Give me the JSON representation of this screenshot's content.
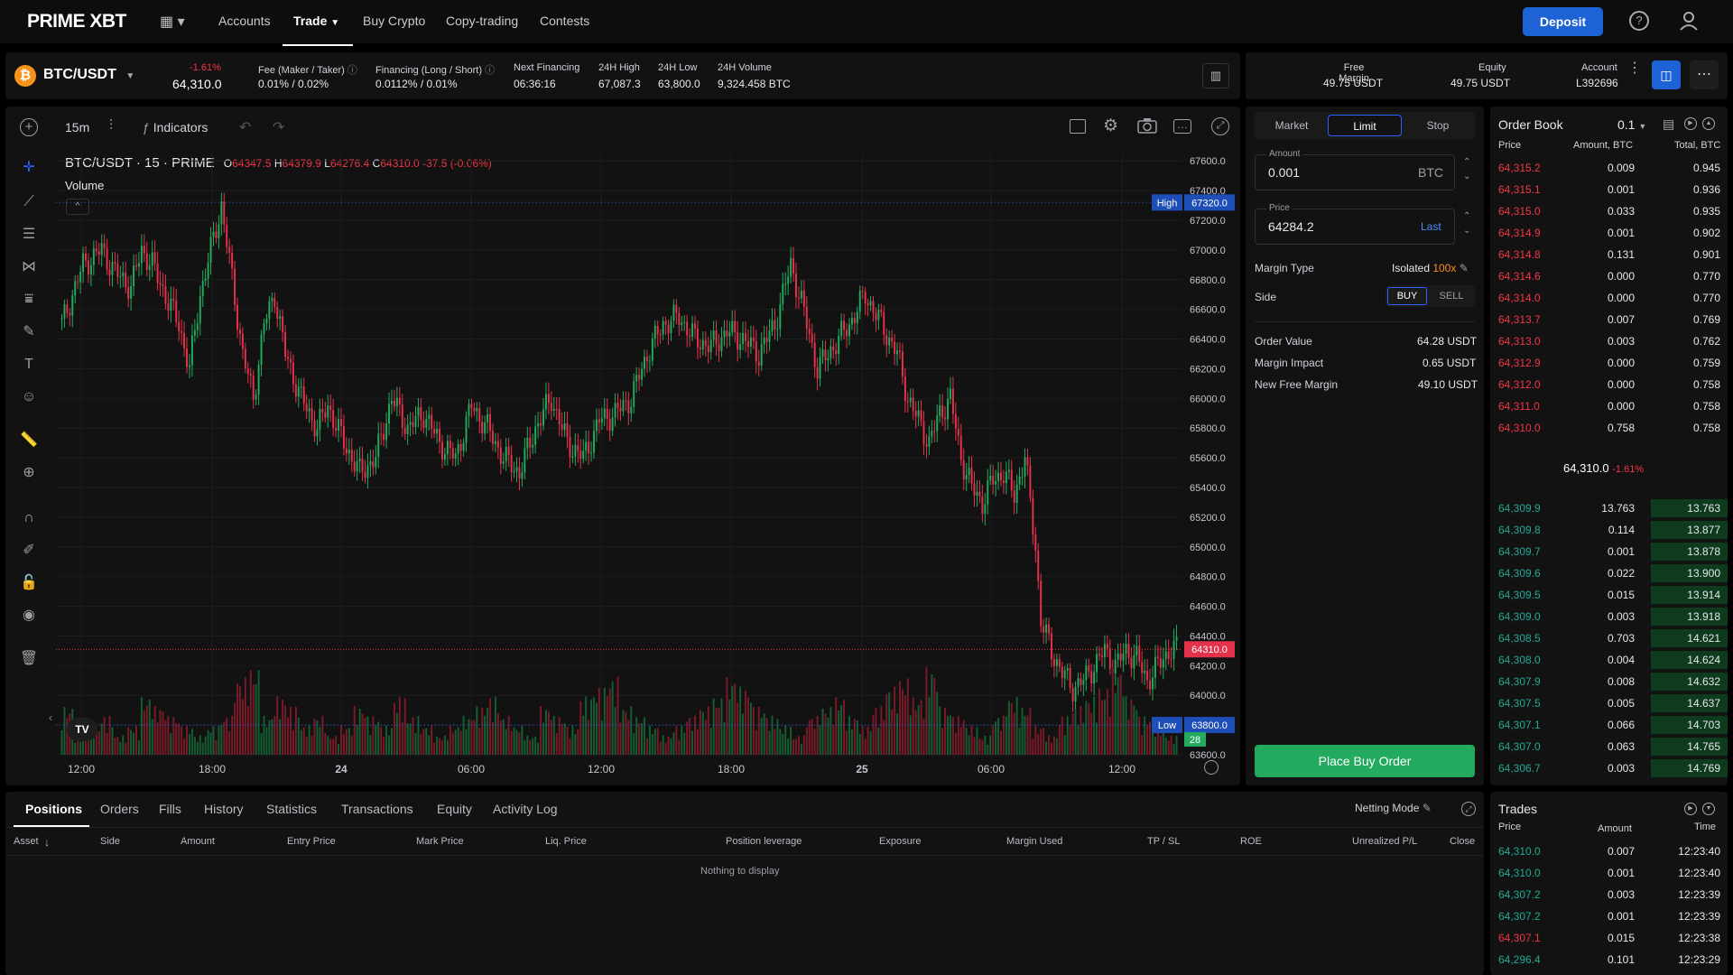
{
  "nav": {
    "logo": "PRIME XBT",
    "accounts": "Accounts",
    "trade": "Trade",
    "buy_crypto": "Buy Crypto",
    "copy_trading": "Copy-trading",
    "contests": "Contests",
    "deposit": "Deposit"
  },
  "ticker": {
    "pair": "BTC/USDT",
    "change": "-1.61%",
    "price": "64,310.0",
    "fee_label": "Fee (Maker / Taker)",
    "fee_value": "0.01% / 0.02%",
    "financing_label": "Financing (Long / Short)",
    "financing_value": "0.0112% / 0.01%",
    "next_financing_label": "Next Financing",
    "next_financing_value": "06:36:16",
    "high_label": "24H High",
    "high_value": "67,087.3",
    "low_label": "24H Low",
    "low_value": "63,800.0",
    "volume_label": "24H Volume",
    "volume_value": "9,324.458 BTC"
  },
  "account": {
    "free_margin_label": "Free Margin",
    "free_margin_value": "49.75 USDT",
    "equity_label": "Equity",
    "equity_value": "49.75 USDT",
    "account_label": "Account",
    "account_value": "L392696"
  },
  "chart_toolbar": {
    "interval": "15m",
    "indicators": "Indicators"
  },
  "chart_data": {
    "type": "candlestick",
    "title": "BTC/USDT · 15 · PRIME",
    "ohlc": {
      "o_label": "O",
      "o": "64347.5",
      "h_label": "H",
      "h": "64379.9",
      "l_label": "L",
      "l": "64276.4",
      "c_label": "C",
      "c": "64310.0",
      "change": "-37.5 (-0.06%)"
    },
    "volume_label": "Volume",
    "y_ticks": [
      "67600.0",
      "67400.0",
      "67200.0",
      "67000.0",
      "66800.0",
      "66600.0",
      "66400.0",
      "66200.0",
      "66000.0",
      "65800.0",
      "65600.0",
      "65400.0",
      "65200.0",
      "65000.0",
      "64800.0",
      "64600.0",
      "64400.0",
      "64200.0",
      "64000.0",
      "63800.0",
      "63600.0"
    ],
    "ylim": [
      63600,
      67650
    ],
    "x_ticks": [
      "12:00",
      "18:00",
      "24",
      "06:00",
      "12:00",
      "18:00",
      "25",
      "06:00",
      "12:00"
    ],
    "high_label": "High",
    "high_value": "67320.0",
    "high": 67320,
    "low_label": "Low",
    "low_value": "63800.0",
    "low": 63800,
    "last_value": "64310.0",
    "last": 64310,
    "timer": "28",
    "path": [
      [
        0,
        66500
      ],
      [
        8,
        66900
      ],
      [
        15,
        67000
      ],
      [
        20,
        66850
      ],
      [
        26,
        66750
      ],
      [
        30,
        67000
      ],
      [
        34,
        66900
      ],
      [
        40,
        66650
      ],
      [
        44,
        66500
      ],
      [
        48,
        66200
      ],
      [
        52,
        66700
      ],
      [
        56,
        67000
      ],
      [
        60,
        67300
      ],
      [
        64,
        66800
      ],
      [
        68,
        66300
      ],
      [
        72,
        66000
      ],
      [
        76,
        66500
      ],
      [
        80,
        66700
      ],
      [
        84,
        66300
      ],
      [
        90,
        66000
      ],
      [
        96,
        65800
      ],
      [
        100,
        65950
      ],
      [
        106,
        65700
      ],
      [
        112,
        65500
      ],
      [
        118,
        65600
      ],
      [
        124,
        66000
      ],
      [
        130,
        65800
      ],
      [
        136,
        65900
      ],
      [
        142,
        65700
      ],
      [
        148,
        65600
      ],
      [
        154,
        65950
      ],
      [
        160,
        65800
      ],
      [
        166,
        65600
      ],
      [
        172,
        65500
      ],
      [
        178,
        65800
      ],
      [
        184,
        66000
      ],
      [
        190,
        65700
      ],
      [
        196,
        65600
      ],
      [
        202,
        65850
      ],
      [
        208,
        65900
      ],
      [
        214,
        66000
      ],
      [
        220,
        66300
      ],
      [
        226,
        66500
      ],
      [
        232,
        66550
      ],
      [
        238,
        66400
      ],
      [
        244,
        66350
      ],
      [
        250,
        66450
      ],
      [
        256,
        66400
      ],
      [
        262,
        66300
      ],
      [
        268,
        66500
      ],
      [
        274,
        66900
      ],
      [
        278,
        66650
      ],
      [
        284,
        66200
      ],
      [
        290,
        66350
      ],
      [
        296,
        66500
      ],
      [
        302,
        66700
      ],
      [
        308,
        66500
      ],
      [
        314,
        66300
      ],
      [
        318,
        66000
      ],
      [
        322,
        65850
      ],
      [
        326,
        65700
      ],
      [
        330,
        65900
      ],
      [
        334,
        66000
      ],
      [
        338,
        65600
      ],
      [
        342,
        65400
      ],
      [
        346,
        65300
      ],
      [
        350,
        65450
      ],
      [
        354,
        65500
      ],
      [
        358,
        65350
      ],
      [
        362,
        65600
      ],
      [
        366,
        65000
      ],
      [
        368,
        64500
      ],
      [
        372,
        64300
      ],
      [
        376,
        64150
      ],
      [
        380,
        64050
      ],
      [
        384,
        64100
      ],
      [
        388,
        64200
      ],
      [
        392,
        64300
      ],
      [
        396,
        64200
      ],
      [
        400,
        64300
      ],
      [
        404,
        64250
      ],
      [
        408,
        64100
      ],
      [
        412,
        64200
      ],
      [
        416,
        64300
      ],
      [
        419,
        64310
      ]
    ],
    "volume": [
      5,
      2,
      3,
      4,
      2,
      3,
      6,
      5,
      4,
      3,
      2,
      3,
      4,
      8,
      9,
      4,
      6,
      5,
      3,
      4,
      2,
      3,
      5,
      4,
      3,
      6,
      4,
      3,
      2,
      3,
      4,
      5,
      6,
      4,
      3,
      2,
      5,
      4,
      3,
      6,
      7,
      8,
      5,
      4,
      3,
      2,
      3,
      4,
      5,
      6,
      8,
      7,
      5,
      4,
      3,
      2,
      4,
      5,
      6,
      4,
      3,
      5,
      7,
      8,
      6,
      9,
      5,
      4,
      3,
      2,
      4,
      6,
      5,
      3,
      2,
      4,
      5,
      6,
      7,
      9,
      6,
      4,
      3,
      2,
      3,
      4
    ]
  },
  "order": {
    "market": "Market",
    "limit": "Limit",
    "stop": "Stop",
    "amount_label": "Amount",
    "amount_value": "0.001",
    "amount_unit": "BTC",
    "price_label": "Price",
    "price_value": "64284.2",
    "price_last": "Last",
    "margin_type_label": "Margin Type",
    "margin_type_value": "Isolated",
    "leverage": "100x",
    "side_label": "Side",
    "buy": "BUY",
    "sell": "SELL",
    "order_value_label": "Order Value",
    "order_value": "64.28 USDT",
    "margin_impact_label": "Margin Impact",
    "margin_impact": "0.65 USDT",
    "new_free_margin_label": "New Free Margin",
    "new_free_margin": "49.10 USDT",
    "place": "Place Buy Order"
  },
  "orderbook": {
    "title": "Order Book",
    "step": "0.1",
    "col_price": "Price",
    "col_amount": "Amount, BTC",
    "col_total": "Total, BTC",
    "asks": [
      [
        "64,315.2",
        "0.009",
        "0.945"
      ],
      [
        "64,315.1",
        "0.001",
        "0.936"
      ],
      [
        "64,315.0",
        "0.033",
        "0.935"
      ],
      [
        "64,314.9",
        "0.001",
        "0.902"
      ],
      [
        "64,314.8",
        "0.131",
        "0.901"
      ],
      [
        "64,314.6",
        "0.000",
        "0.770"
      ],
      [
        "64,314.0",
        "0.000",
        "0.770"
      ],
      [
        "64,313.7",
        "0.007",
        "0.769"
      ],
      [
        "64,313.0",
        "0.003",
        "0.762"
      ],
      [
        "64,312.9",
        "0.000",
        "0.759"
      ],
      [
        "64,312.0",
        "0.000",
        "0.758"
      ],
      [
        "64,311.0",
        "0.000",
        "0.758"
      ],
      [
        "64,310.0",
        "0.758",
        "0.758"
      ]
    ],
    "mid_price": "64,310.0",
    "mid_change": "-1.61%",
    "bids": [
      [
        "64,309.9",
        "13.763",
        "13.763"
      ],
      [
        "64,309.8",
        "0.114",
        "13.877"
      ],
      [
        "64,309.7",
        "0.001",
        "13.878"
      ],
      [
        "64,309.6",
        "0.022",
        "13.900"
      ],
      [
        "64,309.5",
        "0.015",
        "13.914"
      ],
      [
        "64,309.0",
        "0.003",
        "13.918"
      ],
      [
        "64,308.5",
        "0.703",
        "14.621"
      ],
      [
        "64,308.0",
        "0.004",
        "14.624"
      ],
      [
        "64,307.9",
        "0.008",
        "14.632"
      ],
      [
        "64,307.5",
        "0.005",
        "14.637"
      ],
      [
        "64,307.1",
        "0.066",
        "14.703"
      ],
      [
        "64,307.0",
        "0.063",
        "14.765"
      ],
      [
        "64,306.7",
        "0.003",
        "14.769"
      ]
    ]
  },
  "positions": {
    "tabs": [
      "Positions",
      "Orders",
      "Fills",
      "History",
      "Statistics",
      "Transactions",
      "Equity",
      "Activity Log"
    ],
    "netting": "Netting Mode",
    "columns": [
      "Asset",
      "Side",
      "Amount",
      "Entry Price",
      "Mark Price",
      "Liq. Price",
      "Position leverage",
      "Exposure",
      "Margin Used",
      "TP / SL",
      "ROE",
      "Unrealized P/L",
      "Close"
    ],
    "empty": "Nothing to display"
  },
  "trades": {
    "title": "Trades",
    "col_price": "Price",
    "col_amount": "Amount",
    "col_time": "Time",
    "rows": [
      [
        "64,310.0",
        "0.007",
        "12:23:40",
        "green"
      ],
      [
        "64,310.0",
        "0.001",
        "12:23:40",
        "green"
      ],
      [
        "64,307.2",
        "0.003",
        "12:23:39",
        "green"
      ],
      [
        "64,307.2",
        "0.001",
        "12:23:39",
        "green"
      ],
      [
        "64,307.1",
        "0.015",
        "12:23:38",
        "red"
      ],
      [
        "64,296.4",
        "0.101",
        "12:23:29",
        "green"
      ]
    ]
  },
  "colors": {
    "up": "#22ab94",
    "down": "#f23645",
    "accent": "#1e63d6",
    "buy_button": "#22ab5e"
  }
}
